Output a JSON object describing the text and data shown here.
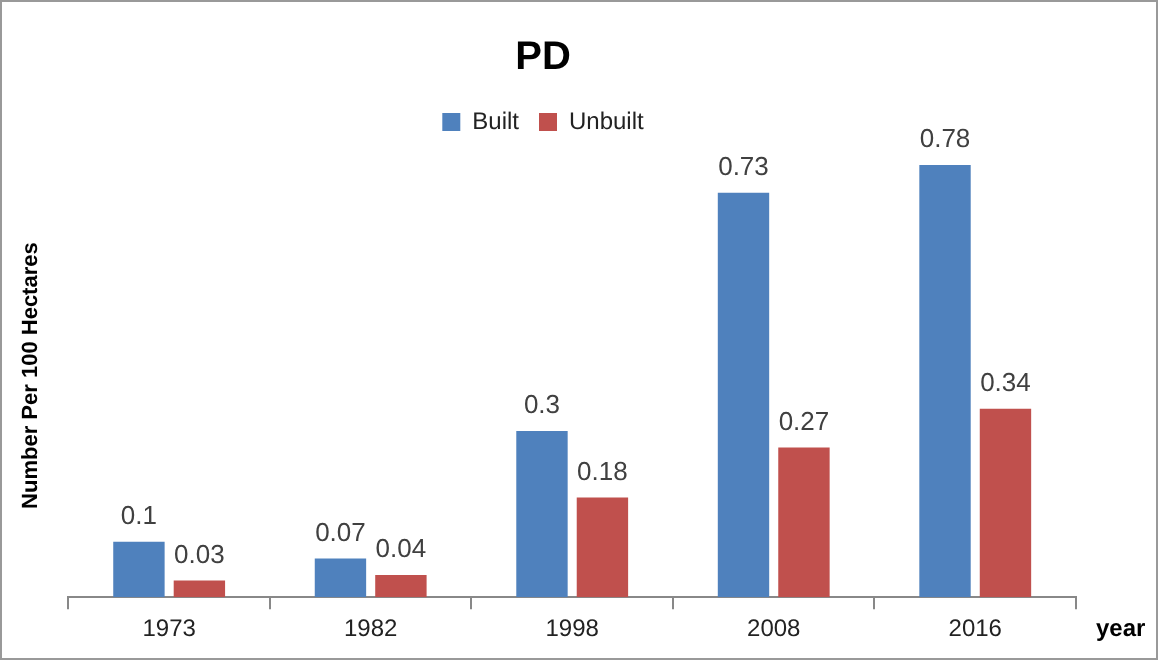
{
  "chart_data": {
    "type": "bar",
    "title": "PD",
    "ylabel": "Number Per 100 Hectares",
    "xlabel": "year",
    "categories": [
      "1973",
      "1982",
      "1998",
      "2008",
      "2016"
    ],
    "series": [
      {
        "name": "Built",
        "color": "#4f81bd",
        "values": [
          0.1,
          0.07,
          0.3,
          0.73,
          0.78
        ]
      },
      {
        "name": "Unbuilt",
        "color": "#c0504d",
        "values": [
          0.03,
          0.04,
          0.18,
          0.27,
          0.34
        ]
      }
    ],
    "data_labels": true,
    "legend": "top",
    "grid": false
  }
}
